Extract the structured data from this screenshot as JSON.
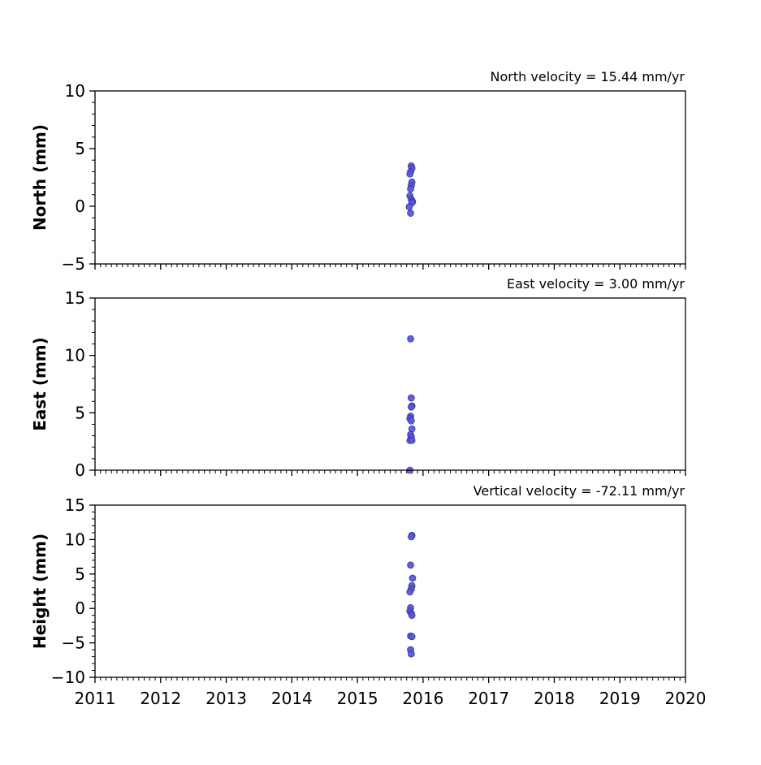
{
  "chart_data": [
    {
      "type": "scatter",
      "title": "North velocity = 15.44 mm/yr",
      "xlabel": "",
      "ylabel": "North (mm)",
      "xlim": [
        2011,
        2020
      ],
      "ylim": [
        -5,
        10
      ],
      "xticks": [
        2011,
        2012,
        2013,
        2014,
        2015,
        2016,
        2017,
        2018,
        2019,
        2020
      ],
      "xtick_labels_shown": false,
      "yticks": [
        -5,
        0,
        5,
        10
      ],
      "ytick_labels": [
        "−5",
        "0",
        "5",
        "10"
      ],
      "grid": false,
      "marker_color": "#5555ee",
      "points": [
        {
          "x": 2015.82,
          "y": 3.5
        },
        {
          "x": 2015.83,
          "y": 3.3
        },
        {
          "x": 2015.81,
          "y": 3.0
        },
        {
          "x": 2015.8,
          "y": 2.8
        },
        {
          "x": 2015.83,
          "y": 2.1
        },
        {
          "x": 2015.82,
          "y": 1.8
        },
        {
          "x": 2015.81,
          "y": 1.5
        },
        {
          "x": 2015.8,
          "y": 0.9
        },
        {
          "x": 2015.82,
          "y": 0.6
        },
        {
          "x": 2015.84,
          "y": 0.4
        },
        {
          "x": 2015.83,
          "y": 0.3
        },
        {
          "x": 2015.79,
          "y": -0.05
        },
        {
          "x": 2015.81,
          "y": -0.6
        }
      ]
    },
    {
      "type": "scatter",
      "title": "East velocity = 3.00 mm/yr",
      "xlabel": "",
      "ylabel": "East (mm)",
      "xlim": [
        2011,
        2020
      ],
      "ylim": [
        0,
        15
      ],
      "xticks": [
        2011,
        2012,
        2013,
        2014,
        2015,
        2016,
        2017,
        2018,
        2019,
        2020
      ],
      "xtick_labels_shown": false,
      "yticks": [
        0,
        5,
        10,
        15
      ],
      "ytick_labels": [
        "0",
        "5",
        "10",
        "15"
      ],
      "grid": false,
      "marker_color": "#5555ee",
      "points": [
        {
          "x": 2015.81,
          "y": 11.45
        },
        {
          "x": 2015.82,
          "y": 6.3
        },
        {
          "x": 2015.83,
          "y": 5.6
        },
        {
          "x": 2015.82,
          "y": 5.5
        },
        {
          "x": 2015.81,
          "y": 4.7
        },
        {
          "x": 2015.8,
          "y": 4.5
        },
        {
          "x": 2015.82,
          "y": 4.3
        },
        {
          "x": 2015.83,
          "y": 3.6
        },
        {
          "x": 2015.81,
          "y": 3.1
        },
        {
          "x": 2015.82,
          "y": 2.9
        },
        {
          "x": 2015.8,
          "y": 2.6
        },
        {
          "x": 2015.83,
          "y": 2.6
        },
        {
          "x": 2015.8,
          "y": 0.0
        }
      ]
    },
    {
      "type": "scatter",
      "title": "Vertical velocity = -72.11 mm/yr",
      "xlabel": "",
      "ylabel": "Height (mm)",
      "xlim": [
        2011,
        2020
      ],
      "ylim": [
        -10,
        15
      ],
      "xticks": [
        2011,
        2012,
        2013,
        2014,
        2015,
        2016,
        2017,
        2018,
        2019,
        2020
      ],
      "xtick_labels": [
        "2011",
        "2012",
        "2013",
        "2014",
        "2015",
        "2016",
        "2017",
        "2018",
        "2019",
        "2020"
      ],
      "xtick_labels_shown": true,
      "yticks": [
        -10,
        -5,
        0,
        5,
        10,
        15
      ],
      "ytick_labels": [
        "−10",
        "−5",
        "0",
        "5",
        "10",
        "15"
      ],
      "grid": false,
      "marker_color": "#5555ee",
      "points": [
        {
          "x": 2015.83,
          "y": 10.6
        },
        {
          "x": 2015.82,
          "y": 10.4
        },
        {
          "x": 2015.81,
          "y": 6.3
        },
        {
          "x": 2015.84,
          "y": 4.4
        },
        {
          "x": 2015.83,
          "y": 3.3
        },
        {
          "x": 2015.82,
          "y": 2.8
        },
        {
          "x": 2015.8,
          "y": 2.4
        },
        {
          "x": 2015.81,
          "y": 0.1
        },
        {
          "x": 2015.8,
          "y": -0.4
        },
        {
          "x": 2015.82,
          "y": -0.7
        },
        {
          "x": 2015.83,
          "y": -1.0
        },
        {
          "x": 2015.81,
          "y": -4.0
        },
        {
          "x": 2015.83,
          "y": -4.1
        },
        {
          "x": 2015.81,
          "y": -6.0
        },
        {
          "x": 2015.82,
          "y": -6.6
        }
      ]
    }
  ]
}
